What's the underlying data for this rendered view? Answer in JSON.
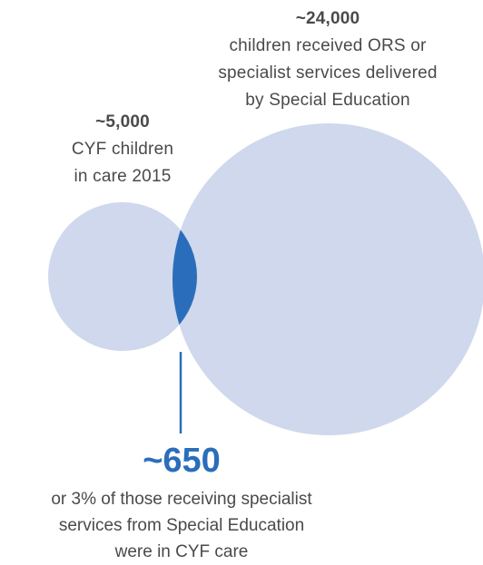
{
  "colors": {
    "circle_fill": "#cfd8ec",
    "overlap_fill": "#2a6ebb",
    "accent": "#2a6ebb",
    "text": "#4a4a4a"
  },
  "large_circle": {
    "value": "~24,000",
    "description_lines": [
      "children received ORS or",
      "specialist services delivered",
      "by Special Education"
    ]
  },
  "small_circle": {
    "value": "~5,000",
    "description_lines": [
      "CYF children",
      "in care 2015"
    ]
  },
  "overlap": {
    "value": "~650",
    "description_lines": [
      "or 3% of those receiving specialist",
      "services from Special Education",
      "were in CYF care"
    ]
  }
}
